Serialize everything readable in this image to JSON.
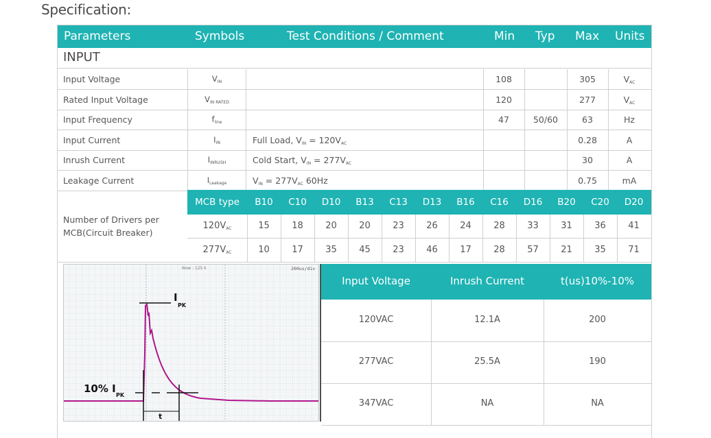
{
  "section_title": "Specification:",
  "header": {
    "parameters": "Parameters",
    "symbols": "Symbols",
    "conditions": "Test Conditions / Comment",
    "min": "Min",
    "typ": "Typ",
    "max": "Max",
    "units": "Units"
  },
  "group": "INPUT",
  "rows": [
    {
      "param": "Input Voltage",
      "sym": "V",
      "sym_sub": "IN",
      "cond": "",
      "cond_sub": "",
      "cond_tail": "",
      "min": "108",
      "typ": "",
      "max": "305",
      "unit": "V",
      "unit_sub": "AC"
    },
    {
      "param": "Rated Input Voltage",
      "sym": "V",
      "sym_sub": "IN RATED",
      "cond": "",
      "cond_sub": "",
      "cond_tail": "",
      "min": "120",
      "typ": "",
      "max": "277",
      "unit": "V",
      "unit_sub": "AC"
    },
    {
      "param": "Input Frequency",
      "sym": "f",
      "sym_sub": "line",
      "cond": "",
      "cond_sub": "",
      "cond_tail": "",
      "min": "47",
      "typ": "50/60",
      "max": "63",
      "unit": "Hz",
      "unit_sub": ""
    },
    {
      "param": "Input Current",
      "sym": "I",
      "sym_sub": "IN",
      "cond": "Full Load, V",
      "cond_sub": "IN",
      "cond_tail": " = 120V",
      "cond_tail_sub": "AC",
      "cond_end": "",
      "min": "",
      "typ": "",
      "max": "0.28",
      "unit": "A",
      "unit_sub": ""
    },
    {
      "param": "Inrush Current",
      "sym": "I",
      "sym_sub": "INRUSH",
      "cond": "Cold Start, V",
      "cond_sub": "IN",
      "cond_tail": " = 277V",
      "cond_tail_sub": "AC",
      "cond_end": "",
      "min": "",
      "typ": "",
      "max": "30",
      "unit": "A",
      "unit_sub": ""
    },
    {
      "param": "Leakage Current",
      "sym": "I",
      "sym_sub": "Leakage",
      "cond": "V",
      "cond_sub": "IN",
      "cond_tail": " = 277V",
      "cond_tail_sub": "AC",
      "cond_end": " 60Hz",
      "min": "",
      "typ": "",
      "max": "0.75",
      "unit": "mA",
      "unit_sub": ""
    }
  ],
  "mcb": {
    "label": "Number of Drivers per MCB(Circuit Breaker)",
    "head_label": "MCB type",
    "types": [
      "B10",
      "C10",
      "D10",
      "B13",
      "C13",
      "D13",
      "B16",
      "C16",
      "D16",
      "B20",
      "C20",
      "D20"
    ],
    "rows": [
      {
        "label": "120V",
        "label_sub": "AC",
        "values": [
          "15",
          "18",
          "20",
          "20",
          "23",
          "26",
          "24",
          "28",
          "33",
          "31",
          "36",
          "41"
        ]
      },
      {
        "label": "277V",
        "label_sub": "AC",
        "values": [
          "10",
          "17",
          "35",
          "45",
          "23",
          "46",
          "17",
          "28",
          "57",
          "21",
          "35",
          "71"
        ]
      }
    ]
  },
  "scope": {
    "top_label": "Now : 125 k",
    "timebase": "200us/div",
    "ipk_label": "I",
    "ipk_sub": "PK",
    "ten_label": "10% I",
    "ten_sub": "PK",
    "t_label": "t",
    "trace_color": "#b0148c"
  },
  "inrush_table": {
    "headers": [
      "Input Voltage",
      "Inrush Current",
      "t(us)10%-10%"
    ],
    "rows": [
      [
        "120VAC",
        "12.1A",
        "200"
      ],
      [
        "277VAC",
        "25.5A",
        "190"
      ],
      [
        "347VAC",
        "NA",
        "NA"
      ]
    ]
  },
  "colors": {
    "accent": "#1fb3b3",
    "border": "#cfcfcf"
  }
}
